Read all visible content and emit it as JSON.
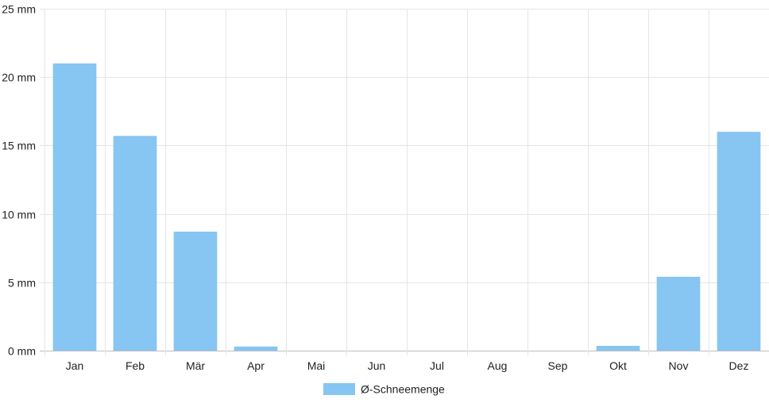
{
  "chart_data": {
    "type": "bar",
    "categories": [
      "Jan",
      "Feb",
      "Mär",
      "Apr",
      "Mai",
      "Jun",
      "Jul",
      "Aug",
      "Sep",
      "Okt",
      "Nov",
      "Dez"
    ],
    "series": [
      {
        "name": "Ø-Schneemenge",
        "values": [
          21.0,
          15.7,
          8.7,
          0.3,
          0,
          0,
          0,
          0,
          0,
          0.35,
          5.4,
          16.0
        ],
        "color": "#87c5f2"
      }
    ],
    "y_ticks": [
      "0 mm",
      "5 mm",
      "10 mm",
      "15 mm",
      "20 mm",
      "25 mm"
    ],
    "ylim": [
      0,
      25
    ],
    "grid": true,
    "legend_position": "bottom"
  }
}
